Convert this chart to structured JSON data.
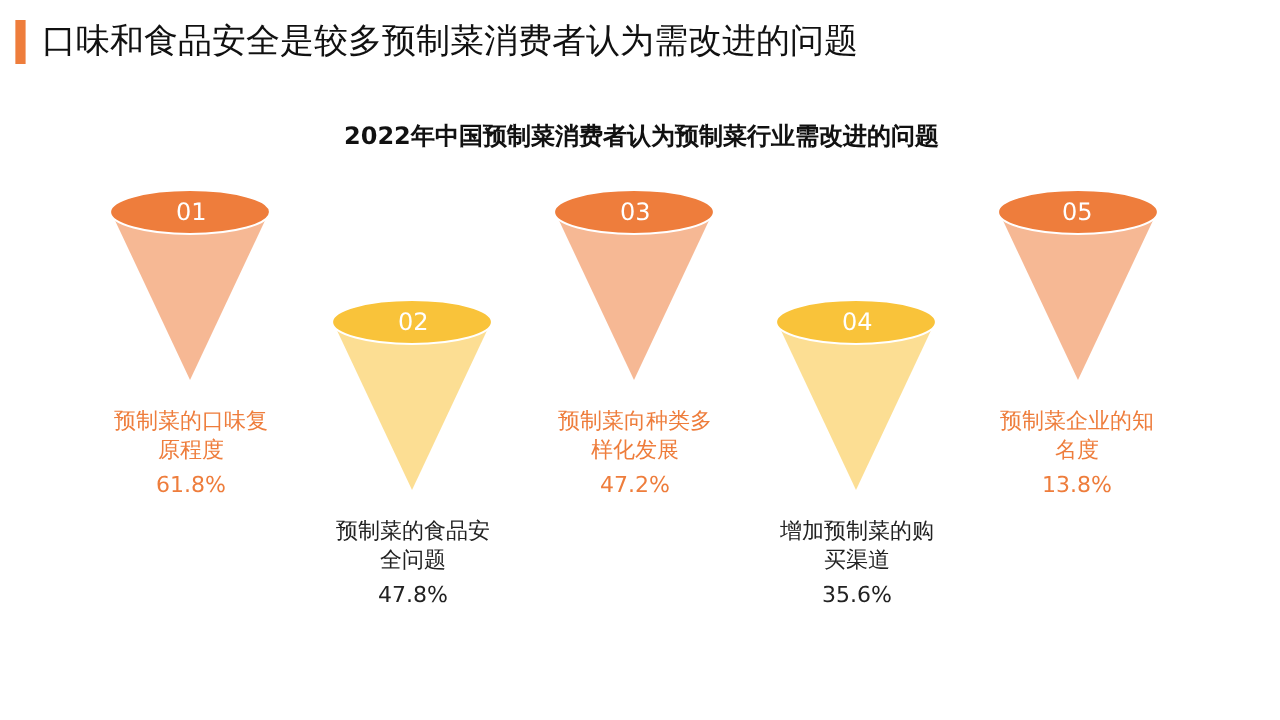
{
  "chart_data": {
    "type": "other",
    "title": "口味和食品安全是较多预制菜消费者认为需改进的问题",
    "subtitle": "2022年中国预制菜消费者认为预制菜行业需改进的问题",
    "categories": [
      "预制菜的口味复原程度",
      "预制菜的食品安全问题",
      "预制菜向种类多样化发展",
      "增加预制菜的购买渠道",
      "预制菜企业的知名度"
    ],
    "values": [
      61.8,
      47.8,
      47.2,
      35.6,
      13.8
    ],
    "value_labels": [
      "61.8%",
      "47.8%",
      "47.2%",
      "35.6%",
      "13.8%"
    ],
    "colors": [
      "#ee7d3c",
      "#f9c33a",
      "#ee7d3c",
      "#f9c33a",
      "#ee7d3c"
    ],
    "annotations": [
      "01",
      "02",
      "03",
      "04",
      "05"
    ]
  }
}
